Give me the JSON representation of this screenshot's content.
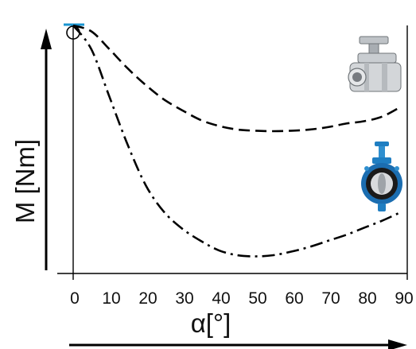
{
  "chart_data": {
    "type": "line",
    "xlabel": "α[°]",
    "ylabel": "M [Nm]",
    "xlim": [
      0,
      90
    ],
    "x_ticks": [
      "0",
      "10",
      "20",
      "30",
      "40",
      "50",
      "60",
      "70",
      "80",
      "90"
    ],
    "grid": false,
    "legend": "none",
    "series": [
      {
        "style": "dashed",
        "depicts": "ball-valve",
        "x": [
          0,
          5,
          10,
          15,
          20,
          25,
          30,
          35,
          40,
          45,
          50,
          55,
          60,
          65,
          70,
          75,
          80,
          85,
          90
        ],
        "y": [
          1.0,
          0.975,
          0.9,
          0.82,
          0.75,
          0.69,
          0.645,
          0.605,
          0.58,
          0.565,
          0.56,
          0.558,
          0.56,
          0.565,
          0.575,
          0.59,
          0.6,
          0.62,
          0.66
        ]
      },
      {
        "style": "dash-dot",
        "depicts": "butterfly-valve",
        "x": [
          0,
          5,
          10,
          15,
          20,
          25,
          30,
          35,
          40,
          45,
          50,
          55,
          60,
          65,
          70,
          75,
          80,
          85,
          90
        ],
        "y": [
          1.0,
          0.9,
          0.7,
          0.5,
          0.33,
          0.22,
          0.15,
          0.1,
          0.06,
          0.04,
          0.035,
          0.04,
          0.055,
          0.075,
          0.1,
          0.125,
          0.155,
          0.185,
          0.22
        ]
      }
    ]
  }
}
